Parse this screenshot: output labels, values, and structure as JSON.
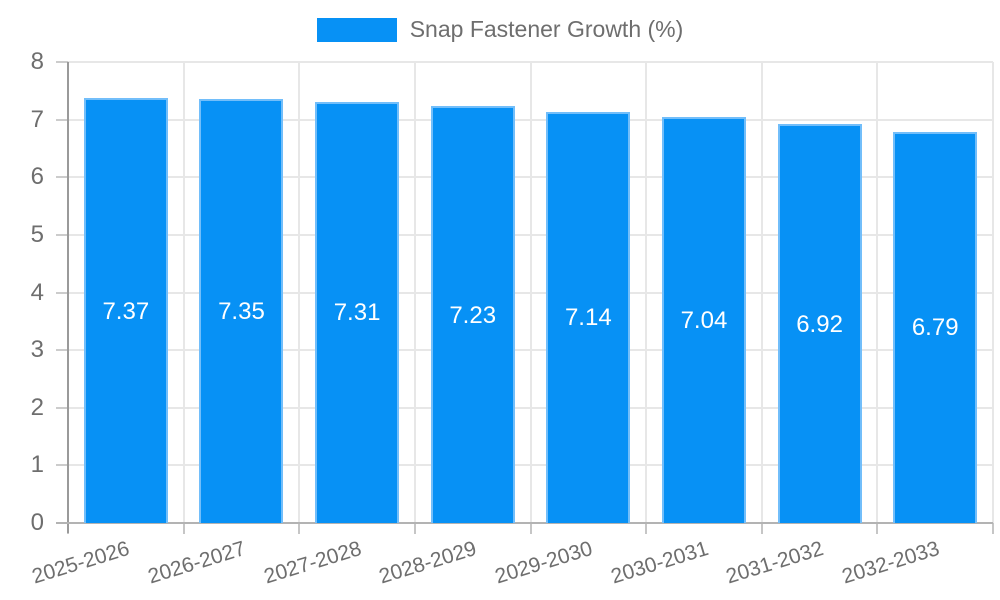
{
  "chart_data": {
    "type": "bar",
    "title": "Snap Fastener Growth (%)",
    "series_name": "Snap Fastener Growth (%)",
    "categories": [
      "2025-2026",
      "2026-2027",
      "2027-2028",
      "2028-2029",
      "2029-2030",
      "2030-2031",
      "2031-2032",
      "2032-2033"
    ],
    "values": [
      7.37,
      7.35,
      7.31,
      7.23,
      7.14,
      7.04,
      6.92,
      6.79
    ],
    "value_labels": [
      "7.37",
      "7.35",
      "7.31",
      "7.23",
      "7.14",
      "7.04",
      "6.92",
      "6.79"
    ],
    "xlabel": "",
    "ylabel": "",
    "ylim": [
      0,
      8
    ],
    "yticks": [
      0,
      1,
      2,
      3,
      4,
      5,
      6,
      7,
      8
    ],
    "grid": true,
    "legend_position": "top",
    "colors": {
      "bar_fill": "#0791f5",
      "bar_border": "#85c6fa",
      "value_label": "#ffffff",
      "axis_text": "#6e6e6e",
      "gridline": "#e7e7e7",
      "axis_line": "#9a9a9a",
      "baseline": "#b3b3b3",
      "tick": "#c6c6c6"
    }
  }
}
